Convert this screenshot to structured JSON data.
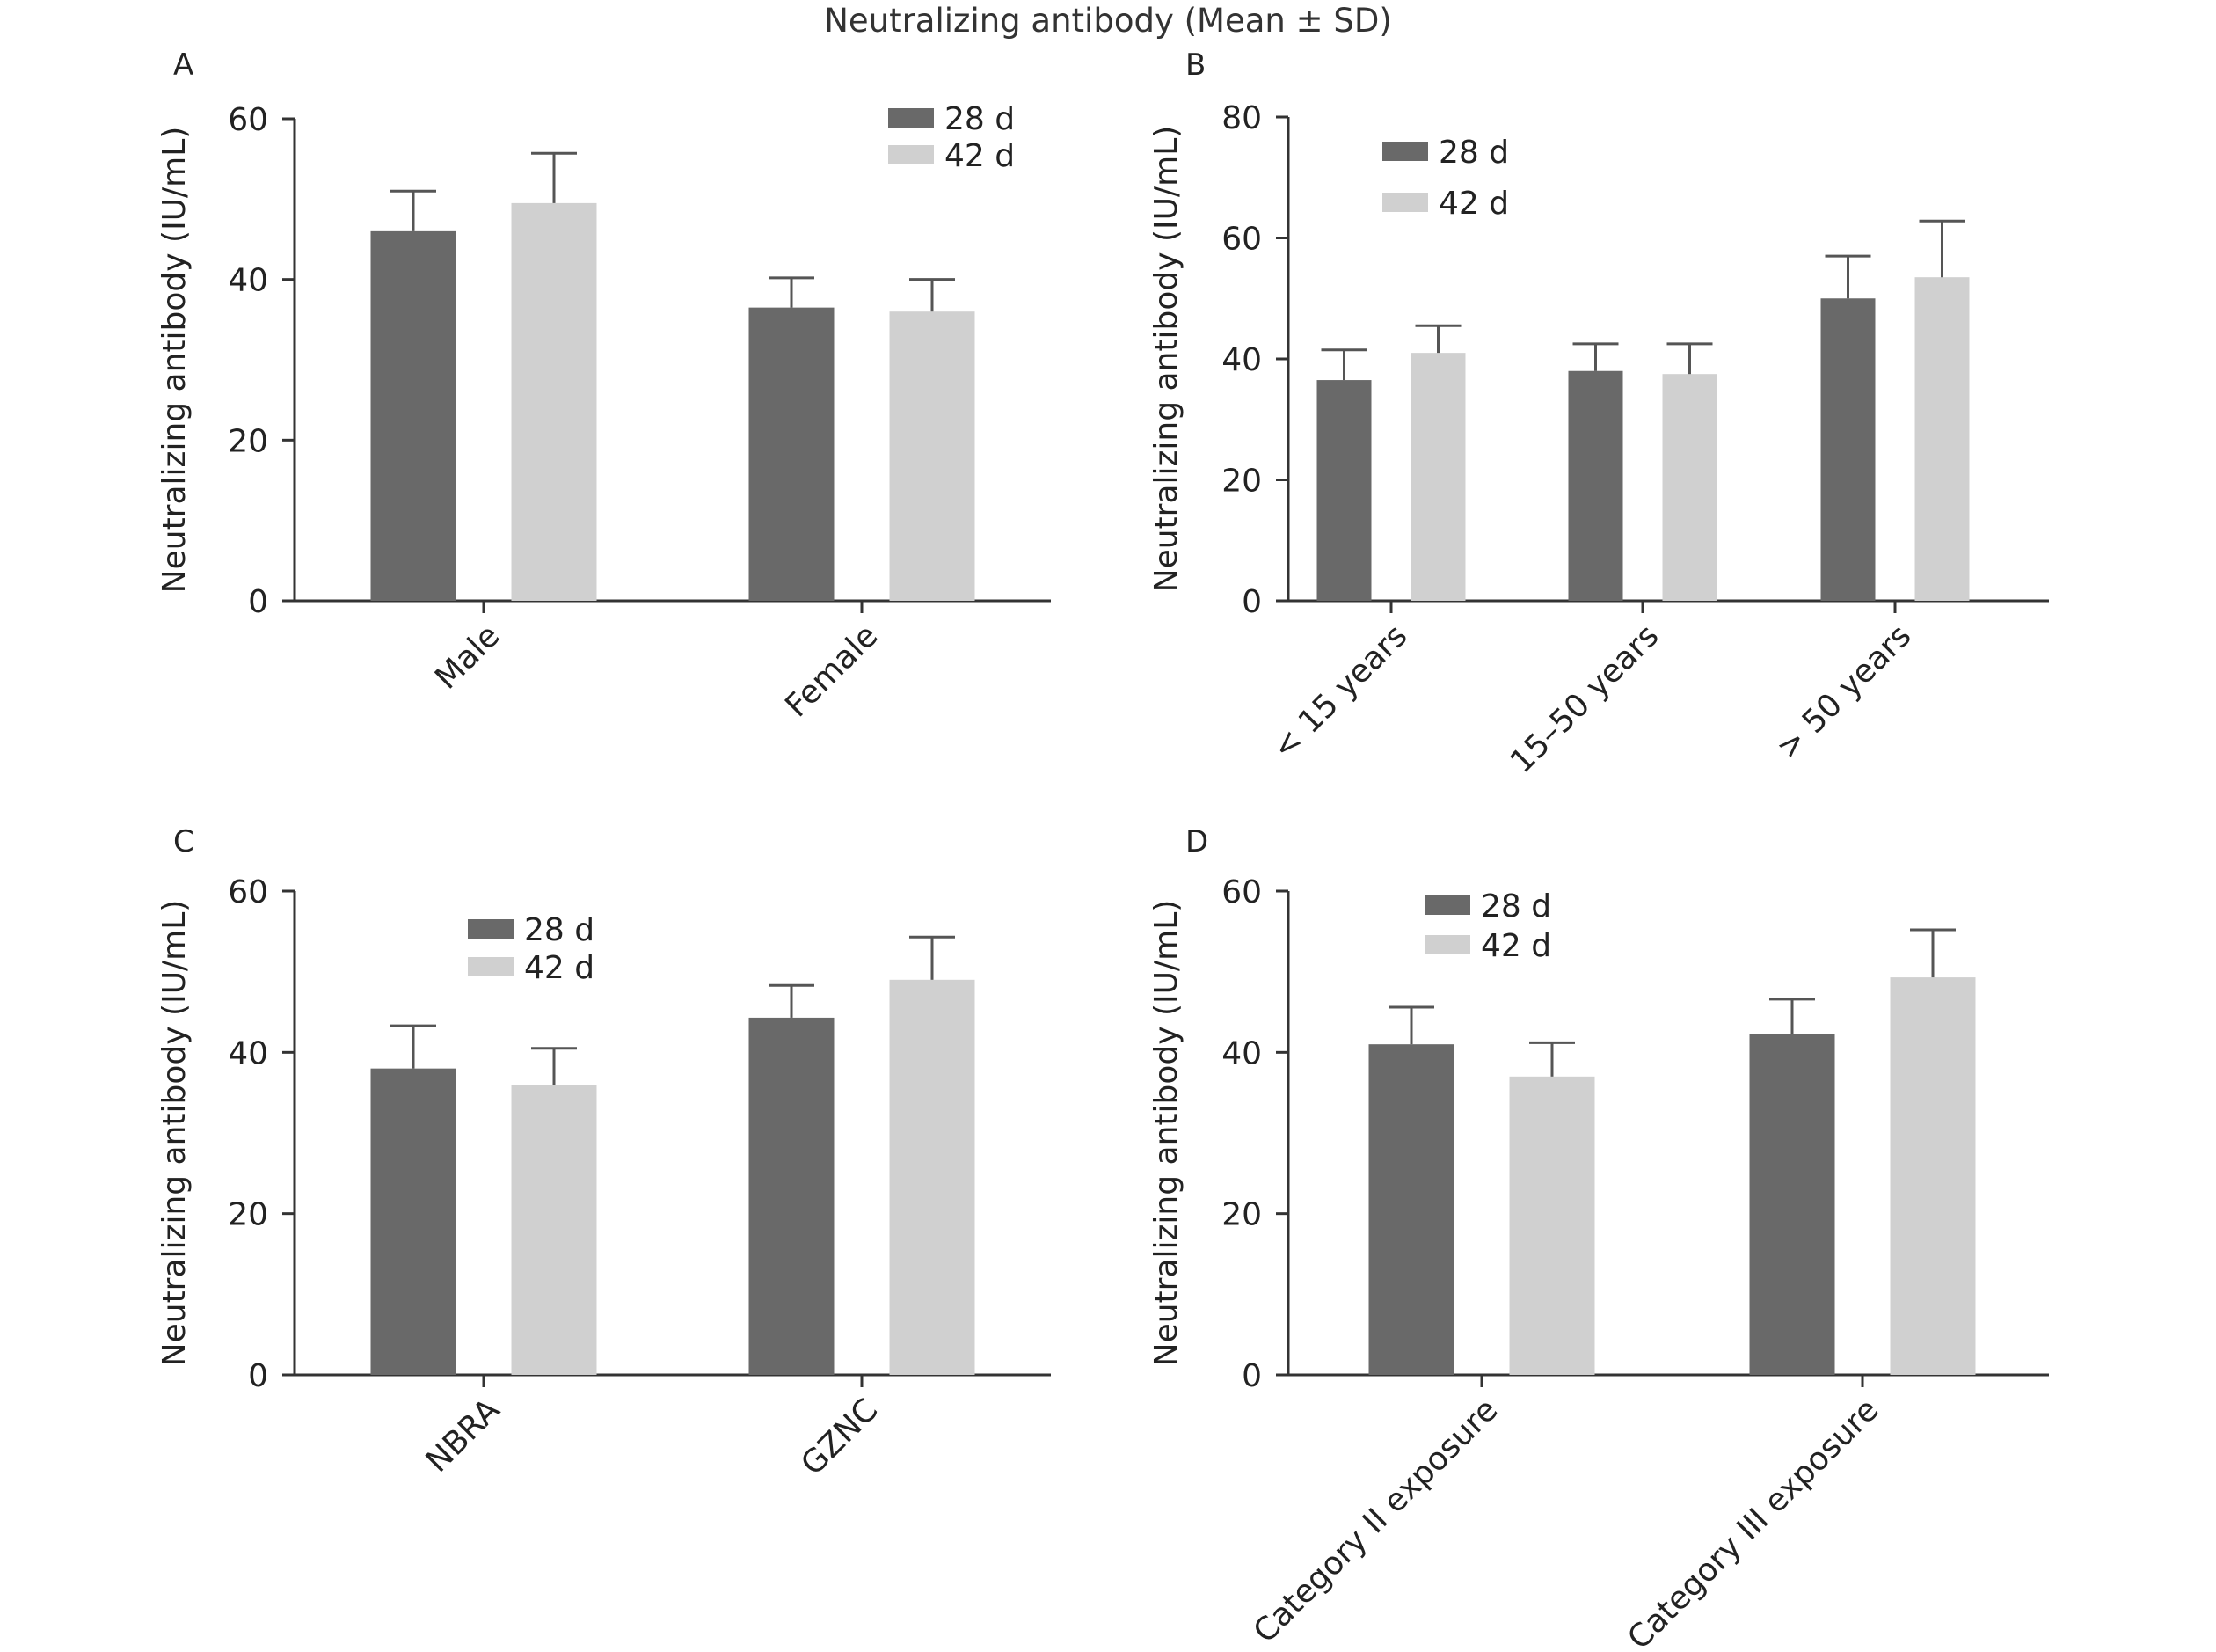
{
  "figure_title": "Neutralizing antibody (Mean ± SD)",
  "colors": {
    "d28": "#696969",
    "d42": "#d0d0d0",
    "axis": "#333333"
  },
  "legend_labels": [
    "28 d",
    "42 d"
  ],
  "chart_data": [
    {
      "panel": "A",
      "type": "bar",
      "ylabel": "Neutralizing antibody (IU/mL)",
      "ylim": [
        0,
        60
      ],
      "yticks": [
        0,
        20,
        40,
        60
      ],
      "categories": [
        "Male",
        "Female"
      ],
      "series": [
        {
          "name": "28 d",
          "values": [
            46.0,
            36.5
          ],
          "sd": [
            5.0,
            3.7
          ]
        },
        {
          "name": "42 d",
          "values": [
            49.5,
            36.0
          ],
          "sd": [
            6.2,
            4.0
          ]
        }
      ],
      "legend": "top-right"
    },
    {
      "panel": "B",
      "type": "bar",
      "ylabel": "Neutralizing antibody (IU/mL)",
      "ylim": [
        0,
        80
      ],
      "yticks": [
        0,
        20,
        40,
        60,
        80
      ],
      "categories": [
        "< 15 years",
        "15–50 years",
        "> 50 years"
      ],
      "series": [
        {
          "name": "28 d",
          "values": [
            36.5,
            38.0,
            50.0
          ],
          "sd": [
            5.0,
            4.5,
            7.0
          ]
        },
        {
          "name": "42 d",
          "values": [
            41.0,
            37.5,
            53.5
          ],
          "sd": [
            4.5,
            5.0,
            9.3
          ]
        }
      ],
      "legend": "top-left"
    },
    {
      "panel": "C",
      "type": "bar",
      "ylabel": "Neutralizing antibody (IU/mL)",
      "ylim": [
        0,
        60
      ],
      "yticks": [
        0,
        20,
        40,
        60
      ],
      "categories": [
        "NBRA",
        "GZNC"
      ],
      "series": [
        {
          "name": "28 d",
          "values": [
            38.0,
            44.3
          ],
          "sd": [
            5.3,
            4.0
          ]
        },
        {
          "name": "42 d",
          "values": [
            36.0,
            49.0
          ],
          "sd": [
            4.5,
            5.3
          ]
        }
      ],
      "legend": "top-center"
    },
    {
      "panel": "D",
      "type": "bar",
      "ylabel": "Neutralizing antibody (IU/mL)",
      "ylim": [
        0,
        60
      ],
      "yticks": [
        0,
        20,
        40,
        60
      ],
      "categories": [
        "Category II exposure",
        "Category III exposure"
      ],
      "series": [
        {
          "name": "28 d",
          "values": [
            41.0,
            42.3
          ],
          "sd": [
            4.6,
            4.3
          ]
        },
        {
          "name": "42 d",
          "values": [
            37.0,
            49.3
          ],
          "sd": [
            4.2,
            5.9
          ]
        }
      ],
      "legend": "top-left"
    }
  ]
}
